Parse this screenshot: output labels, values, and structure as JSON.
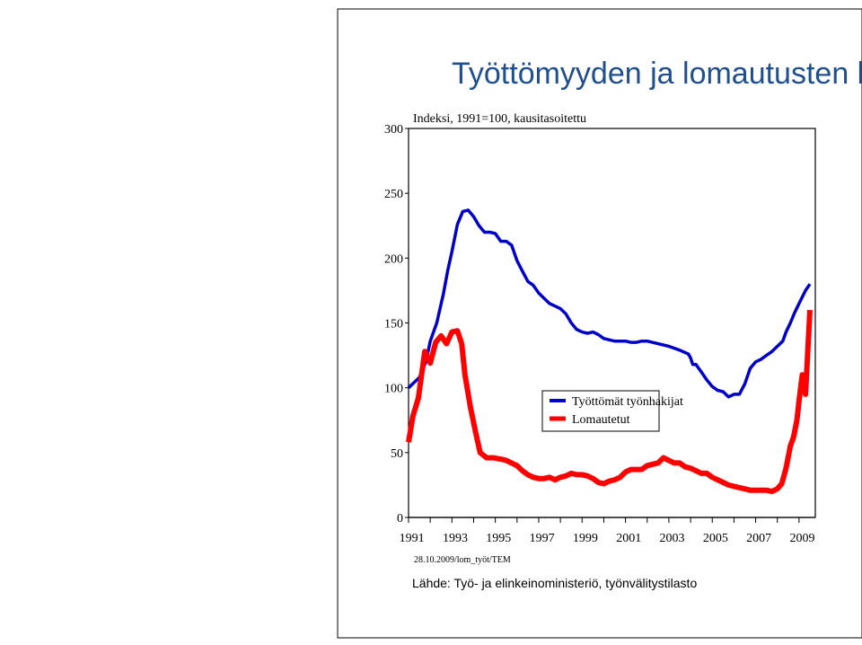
{
  "slide": {
    "title": "Työttömyyden ja lomautusten k",
    "footer_code": "28.10.2009/lom_työt/TEM",
    "source": "Lähde: Työ- ja elinkeinoministeriö, työnvälitystilasto"
  },
  "chart_data": {
    "type": "line",
    "title": "",
    "subtitle": "Indeksi, 1991=100, kausitasoitettu",
    "xlabel": "",
    "ylabel": "",
    "ylim": [
      0,
      300
    ],
    "xlim": [
      1991,
      2009.75
    ],
    "yticks": [
      0,
      50,
      100,
      150,
      200,
      250,
      300
    ],
    "xticks": [
      1991,
      1993,
      1995,
      1997,
      1999,
      2001,
      2003,
      2005,
      2007,
      2009
    ],
    "grid": false,
    "legend_position": "center-right",
    "series": [
      {
        "name": "Työttömät työnhakijat",
        "color": "#0000cc",
        "x": [
          1991.0,
          1991.5,
          1991.8,
          1992.0,
          1992.3,
          1992.6,
          1992.8,
          1993.0,
          1993.25,
          1993.5,
          1993.75,
          1994.0,
          1994.25,
          1994.5,
          1994.75,
          1995.0,
          1995.25,
          1995.5,
          1995.75,
          1996.0,
          1996.25,
          1996.5,
          1996.75,
          1997.0,
          1997.25,
          1997.5,
          1997.75,
          1998.0,
          1998.25,
          1998.5,
          1998.75,
          1999.0,
          1999.25,
          1999.5,
          1999.75,
          2000.0,
          2000.25,
          2000.5,
          2000.75,
          2001.0,
          2001.25,
          2001.5,
          2001.75,
          2002.0,
          2002.5,
          2003.0,
          2003.5,
          2003.9,
          2004.0,
          2004.1,
          2004.25,
          2004.5,
          2004.75,
          2005.0,
          2005.25,
          2005.5,
          2005.75,
          2006.0,
          2006.25,
          2006.5,
          2006.75,
          2007.0,
          2007.25,
          2007.5,
          2007.75,
          2008.0,
          2008.25,
          2008.4,
          2008.6,
          2008.8,
          2009.0,
          2009.15,
          2009.3,
          2009.5
        ],
        "values": [
          100,
          108,
          120,
          136,
          150,
          172,
          190,
          205,
          226,
          236,
          237,
          232,
          225,
          220,
          220,
          219,
          213,
          213,
          210,
          198,
          190,
          182,
          179,
          173,
          169,
          165,
          163,
          161,
          157,
          150,
          145,
          143,
          142,
          143,
          141,
          138,
          137,
          136,
          136,
          136,
          135,
          135,
          136,
          136,
          134,
          132,
          129,
          126,
          123,
          118,
          118,
          112,
          106,
          101,
          98,
          97,
          93,
          95,
          95,
          103,
          115,
          120,
          122,
          125,
          128,
          132,
          136,
          143,
          150,
          158,
          165,
          170,
          175,
          180
        ]
      },
      {
        "name": "Lomautetut",
        "color": "#ff0000",
        "x": [
          1991.0,
          1991.2,
          1991.45,
          1991.75,
          1992.0,
          1992.25,
          1992.5,
          1992.75,
          1993.0,
          1993.25,
          1993.45,
          1993.6,
          1993.85,
          1994.1,
          1994.3,
          1994.6,
          1994.9,
          1995.25,
          1995.5,
          1995.75,
          1996.0,
          1996.25,
          1996.5,
          1996.75,
          1997.0,
          1997.25,
          1997.5,
          1997.75,
          1998.0,
          1998.25,
          1998.5,
          1998.75,
          1999.0,
          1999.25,
          1999.5,
          1999.75,
          2000.0,
          2000.25,
          2000.5,
          2000.75,
          2001.0,
          2001.25,
          2001.5,
          2001.75,
          2002.0,
          2002.25,
          2002.5,
          2002.75,
          2003.0,
          2003.25,
          2003.5,
          2003.75,
          2004.0,
          2004.25,
          2004.5,
          2004.75,
          2005.0,
          2005.25,
          2005.5,
          2005.75,
          2006.0,
          2006.25,
          2006.5,
          2006.75,
          2007.0,
          2007.25,
          2007.5,
          2007.75,
          2008.0,
          2008.2,
          2008.4,
          2008.6,
          2008.75,
          2008.9,
          2009.0,
          2009.15,
          2009.3,
          2009.5
        ],
        "values": [
          58,
          78,
          92,
          128,
          119,
          135,
          140,
          134,
          143,
          144,
          134,
          110,
          85,
          65,
          50,
          46,
          46,
          45,
          44,
          42,
          40,
          36,
          33,
          31,
          30,
          30,
          31,
          29,
          31,
          32,
          34,
          33,
          33,
          32,
          30,
          27,
          26,
          28,
          29,
          31,
          35,
          37,
          37,
          37,
          40,
          41,
          42,
          46,
          44,
          42,
          42,
          39,
          38,
          36,
          34,
          34,
          31,
          29,
          27,
          25,
          24,
          23,
          22,
          21,
          21,
          21,
          21,
          20,
          22,
          26,
          38,
          55,
          62,
          75,
          90,
          110,
          95,
          160
        ]
      }
    ]
  }
}
